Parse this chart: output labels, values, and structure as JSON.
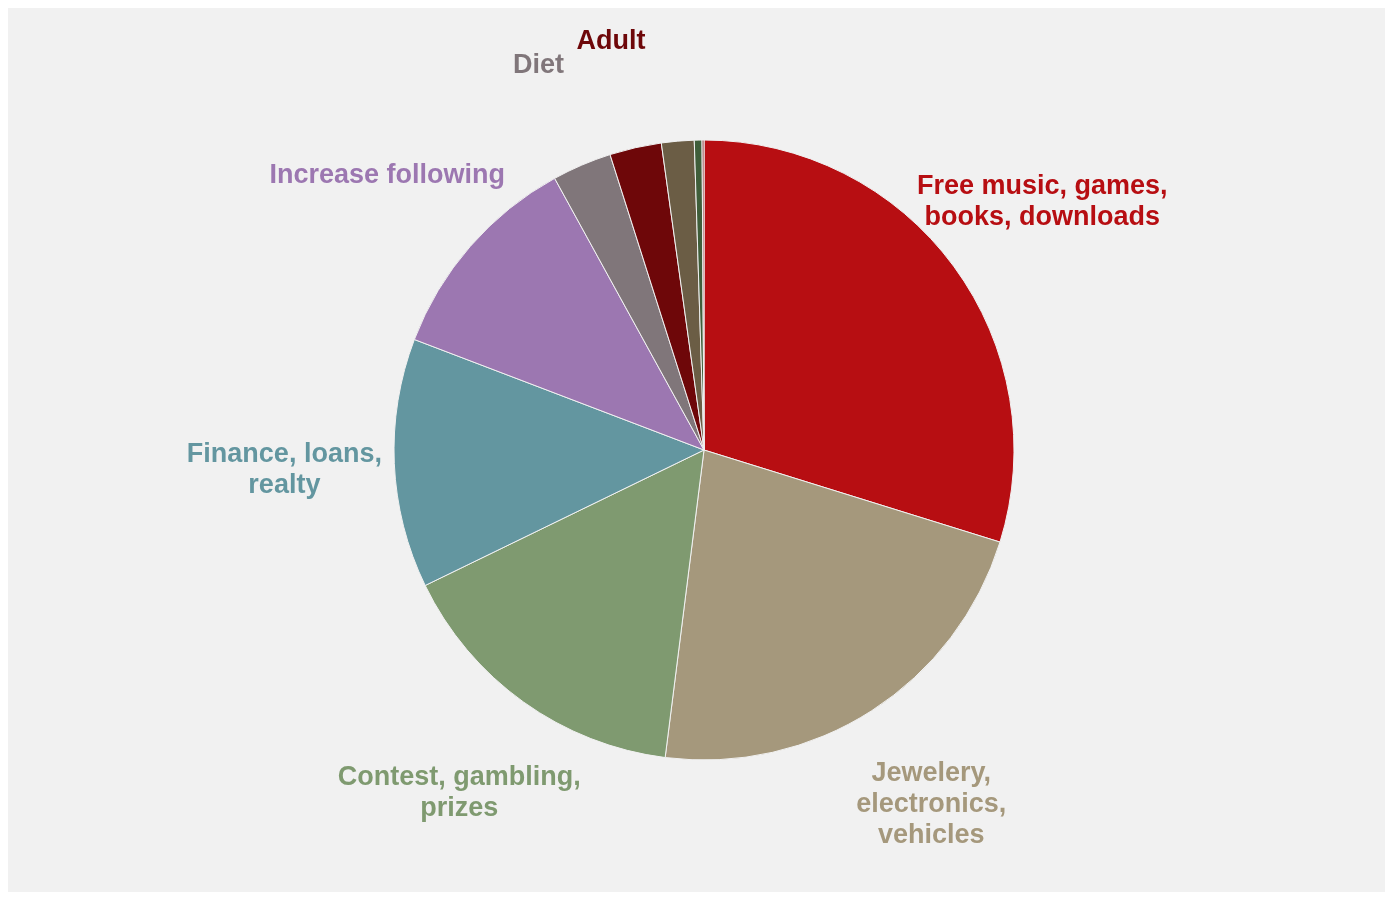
{
  "chart_data": {
    "type": "pie",
    "categories": [
      "Free music, games, books, downloads",
      "Jewelery, electronics, vehicles",
      "Contest, gambling, prizes",
      "Finance, loans, realty",
      "Increase following",
      "Diet",
      "Adult",
      null,
      null,
      null
    ],
    "values": [
      29.8,
      22.2,
      15.8,
      13.0,
      11.2,
      3.1,
      2.7,
      1.7,
      0.4,
      0.1
    ],
    "colors": [
      "#b70e12",
      "#a5987c",
      "#7f9a70",
      "#6396a0",
      "#9c77b1",
      "#80767a",
      "#6e0709",
      "#6b5d45",
      "#3f5e3a",
      "#8a3030"
    ]
  }
}
